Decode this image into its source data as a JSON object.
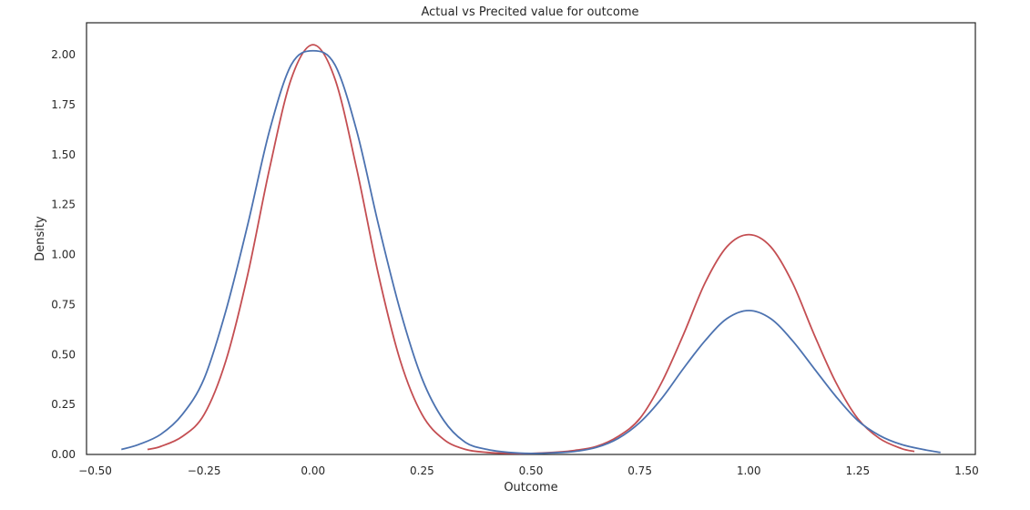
{
  "chart_data": {
    "type": "line",
    "title": "Actual vs Precited value for outcome",
    "xlabel": "Outcome",
    "ylabel": "Density",
    "xlim": [
      -0.52,
      1.52
    ],
    "ylim": [
      0,
      2.16
    ],
    "xticks": [
      -0.5,
      -0.25,
      0.0,
      0.25,
      0.5,
      0.75,
      1.0,
      1.25,
      1.5
    ],
    "xtick_labels": [
      "−0.50",
      "−0.25",
      "0.00",
      "0.25",
      "0.50",
      "0.75",
      "1.00",
      "1.25",
      "1.50"
    ],
    "yticks": [
      0.0,
      0.25,
      0.5,
      0.75,
      1.0,
      1.25,
      1.5,
      1.75,
      2.0
    ],
    "ytick_labels": [
      "0.00",
      "0.25",
      "0.50",
      "0.75",
      "1.00",
      "1.25",
      "1.50",
      "1.75",
      "2.00"
    ],
    "grid": false,
    "series": [
      {
        "color": "#c44e52",
        "x": [
          -0.38,
          -0.35,
          -0.3,
          -0.25,
          -0.2,
          -0.15,
          -0.1,
          -0.05,
          0.0,
          0.05,
          0.1,
          0.15,
          0.2,
          0.25,
          0.3,
          0.35,
          0.4,
          0.45,
          0.5,
          0.55,
          0.6,
          0.65,
          0.7,
          0.75,
          0.8,
          0.85,
          0.9,
          0.95,
          1.0,
          1.05,
          1.1,
          1.15,
          1.2,
          1.25,
          1.3,
          1.35,
          1.38
        ],
        "y": [
          0.025,
          0.04,
          0.09,
          0.2,
          0.47,
          0.9,
          1.43,
          1.88,
          2.05,
          1.88,
          1.43,
          0.9,
          0.47,
          0.2,
          0.075,
          0.025,
          0.01,
          0.005,
          0.005,
          0.01,
          0.02,
          0.04,
          0.09,
          0.18,
          0.36,
          0.6,
          0.86,
          1.04,
          1.1,
          1.04,
          0.86,
          0.6,
          0.36,
          0.18,
          0.08,
          0.03,
          0.015
        ]
      },
      {
        "color": "#4c72b0",
        "x": [
          -0.44,
          -0.4,
          -0.35,
          -0.3,
          -0.25,
          -0.2,
          -0.15,
          -0.1,
          -0.05,
          0.0,
          0.05,
          0.1,
          0.15,
          0.2,
          0.25,
          0.3,
          0.35,
          0.4,
          0.45,
          0.5,
          0.55,
          0.6,
          0.65,
          0.7,
          0.75,
          0.8,
          0.85,
          0.9,
          0.95,
          1.0,
          1.05,
          1.1,
          1.15,
          1.2,
          1.25,
          1.3,
          1.35,
          1.4,
          1.44
        ],
        "y": [
          0.025,
          0.05,
          0.1,
          0.2,
          0.38,
          0.72,
          1.15,
          1.62,
          1.95,
          2.02,
          1.95,
          1.62,
          1.15,
          0.72,
          0.38,
          0.17,
          0.06,
          0.025,
          0.01,
          0.005,
          0.008,
          0.015,
          0.035,
          0.08,
          0.16,
          0.28,
          0.43,
          0.57,
          0.68,
          0.72,
          0.68,
          0.57,
          0.43,
          0.29,
          0.17,
          0.095,
          0.05,
          0.025,
          0.01
        ]
      }
    ]
  }
}
